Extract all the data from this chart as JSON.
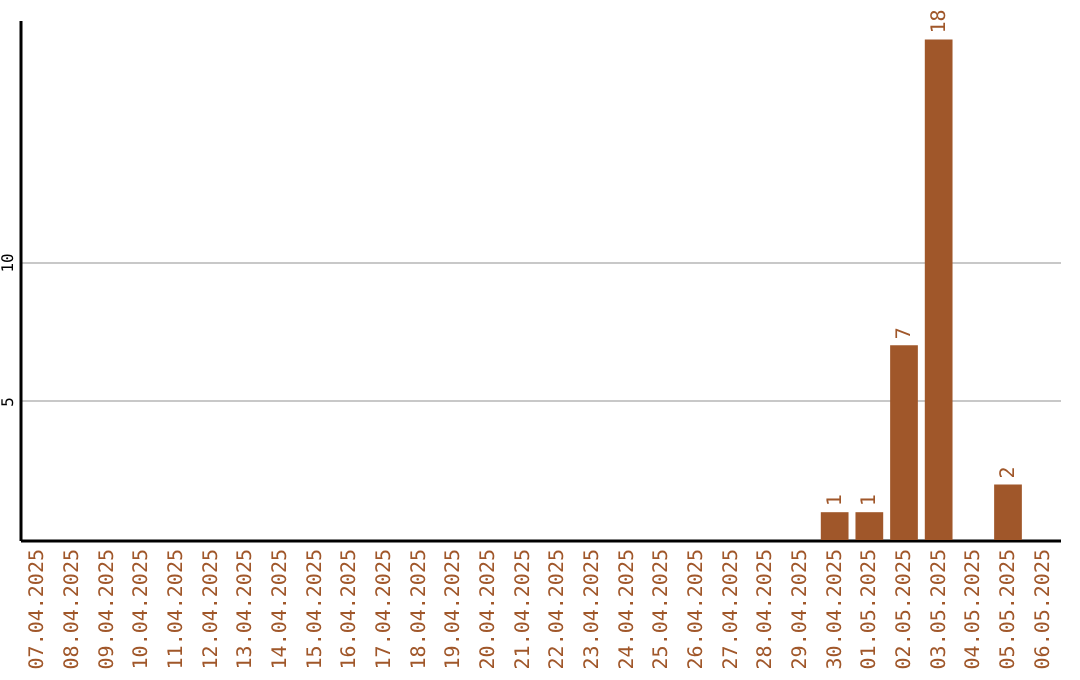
{
  "chart_data": {
    "type": "bar",
    "categories": [
      "07.04.2025",
      "08.04.2025",
      "09.04.2025",
      "10.04.2025",
      "11.04.2025",
      "12.04.2025",
      "13.04.2025",
      "14.04.2025",
      "15.04.2025",
      "16.04.2025",
      "17.04.2025",
      "18.04.2025",
      "19.04.2025",
      "20.04.2025",
      "21.04.2025",
      "22.04.2025",
      "23.04.2025",
      "24.04.2025",
      "25.04.2025",
      "26.04.2025",
      "27.04.2025",
      "28.04.2025",
      "29.04.2025",
      "30.04.2025",
      "01.05.2025",
      "02.05.2025",
      "03.05.2025",
      "04.05.2025",
      "05.05.2025",
      "06.05.2025"
    ],
    "values": [
      0,
      0,
      0,
      0,
      0,
      0,
      0,
      0,
      0,
      0,
      0,
      0,
      0,
      0,
      0,
      0,
      0,
      0,
      0,
      0,
      0,
      0,
      0,
      1,
      1,
      7,
      18,
      0,
      2,
      0
    ],
    "value_labels": [
      null,
      null,
      null,
      null,
      null,
      null,
      null,
      null,
      null,
      null,
      null,
      null,
      null,
      null,
      null,
      null,
      null,
      null,
      null,
      null,
      null,
      null,
      null,
      "1",
      "1",
      "7",
      "18",
      null,
      "2",
      null
    ],
    "color": "#a0572a",
    "ylim": [
      0,
      18.7
    ],
    "yticks": [
      5,
      10
    ],
    "grid": "y"
  }
}
